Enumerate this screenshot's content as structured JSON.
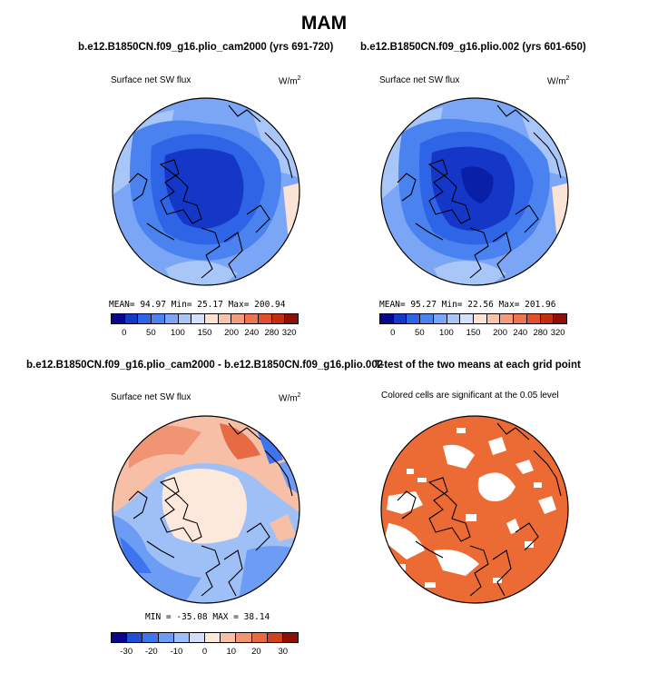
{
  "title": "MAM",
  "panels": {
    "top_left": {
      "case_title": "b.e12.B1850CN.f09_g16.plio_cam2000 (yrs 691-720)",
      "variable": "Surface net SW flux",
      "units": "W/m",
      "units_sup": "2",
      "stats": "MEAN=  94.97  Min=  25.17  Max= 200.94",
      "colorbar_ticks": [
        "0",
        "50",
        "100",
        "150",
        "200",
        "240",
        "280",
        "320"
      ]
    },
    "top_right": {
      "case_title": "b.e12.B1850CN.f09_g16.plio.002 (yrs 601-650)",
      "variable": "Surface net SW flux",
      "units": "W/m",
      "units_sup": "2",
      "stats": "MEAN=  95.27  Min=  22.56  Max= 201.96",
      "colorbar_ticks": [
        "0",
        "50",
        "100",
        "150",
        "200",
        "240",
        "280",
        "320"
      ]
    },
    "bottom_left": {
      "diff_title": "b.e12.B1850CN.f09_g16.plio_cam2000 - b.e12.B1850CN.f09_g16.plio.002",
      "variable": "Surface net SW flux",
      "units": "W/m",
      "units_sup": "2",
      "stats": "MIN = -35.08  MAX =  38.14",
      "colorbar_ticks": [
        "-30",
        "-20",
        "-10",
        "0",
        "10",
        "20",
        "30"
      ]
    },
    "bottom_right": {
      "ttest_title": "T-test of the two means at each grid point",
      "subtitle": "Colored cells are significant at the 0.05 level"
    }
  },
  "colors": {
    "abs_scale": [
      "#08088c",
      "#1437c8",
      "#2e64e6",
      "#4a82f0",
      "#7aa6f5",
      "#a9c6f8",
      "#d3e2fa",
      "#fbe3d6",
      "#f8c3ab",
      "#f49d7e",
      "#ee7550",
      "#e0502c",
      "#c32d12",
      "#8e0f05"
    ],
    "diff_scale": [
      "#08088c",
      "#1f4fd8",
      "#3c75ee",
      "#6c9cf4",
      "#9fc0f7",
      "#cfdffa",
      "#fde8dc",
      "#f7c0a6",
      "#f19474",
      "#e86a44",
      "#d1411f",
      "#8e0f05"
    ],
    "signif": "#ec6b35"
  }
}
